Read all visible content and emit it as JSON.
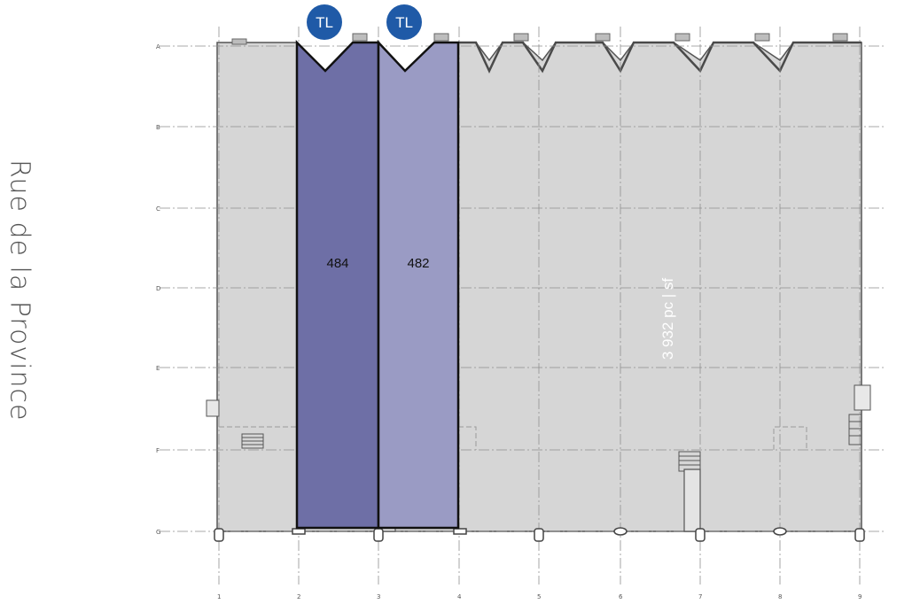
{
  "street": {
    "label": "Rue de la Province"
  },
  "area": {
    "label": "3 932 pc | sf"
  },
  "units": [
    {
      "number": "484",
      "badge": "TL",
      "color": "#6e6fa6"
    },
    {
      "number": "482",
      "badge": "TL",
      "color": "#9a9bc4"
    }
  ],
  "colors": {
    "floor": "#d6d6d6",
    "badge": "#1f5aa7",
    "outline": "#111111"
  },
  "grid": {
    "columns": [
      "1",
      "2",
      "3",
      "4",
      "5",
      "6",
      "7",
      "8",
      "9"
    ],
    "rows": [
      "A",
      "B",
      "C",
      "D",
      "E",
      "F",
      "G"
    ]
  }
}
